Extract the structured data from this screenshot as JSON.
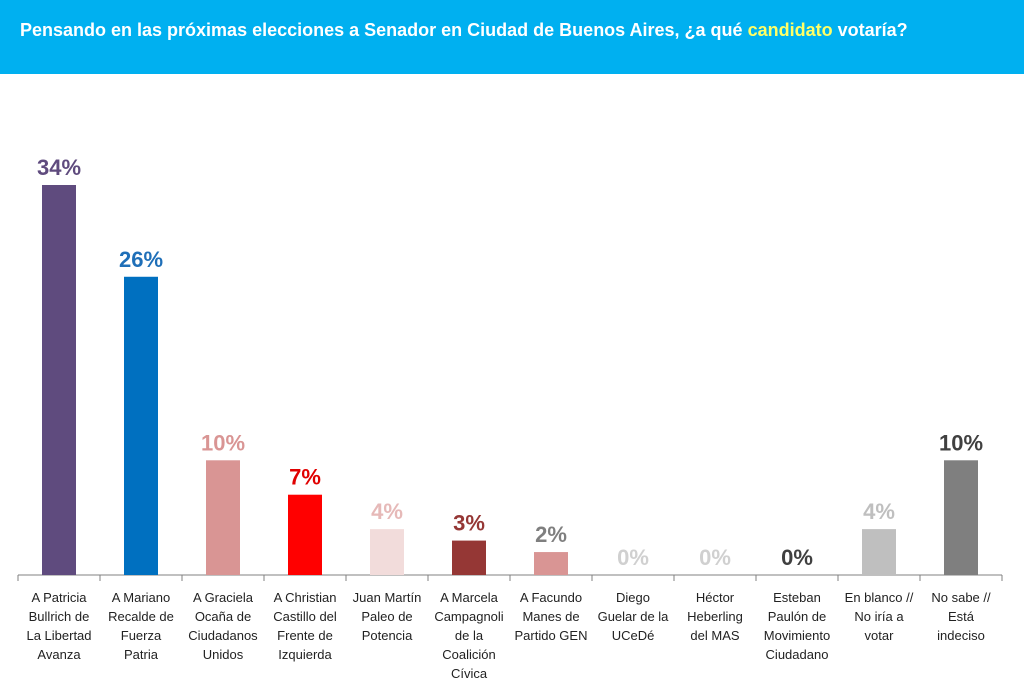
{
  "header": {
    "title_before": "Pensando en las próximas elecciones a Senador en Ciudad de Buenos Aires, ¿a qué ",
    "title_highlight": "candidato",
    "title_after": " votaría?",
    "background_color": "#00b0f0",
    "highlight_color": "#ffff66"
  },
  "chart_data": {
    "type": "bar",
    "title": "Pensando en las próximas elecciones a Senador en Ciudad de Buenos Aires, ¿a qué candidato votaría?",
    "xlabel": "",
    "ylabel": "",
    "ylim": [
      0,
      34
    ],
    "grid": false,
    "categories": [
      [
        "A Patricia",
        "Bullrich de",
        "La Libertad",
        "Avanza"
      ],
      [
        "A Mariano",
        "Recalde de",
        "Fuerza",
        "Patria"
      ],
      [
        "A Graciela",
        "Ocaña de",
        "Ciudadanos",
        "Unidos"
      ],
      [
        "A Christian",
        "Castillo del",
        "Frente de",
        "Izquierda"
      ],
      [
        "Juan Martín",
        "Paleo de",
        "Potencia"
      ],
      [
        "A Marcela",
        "Campagnoli",
        "de la",
        "Coalición",
        "Cívica"
      ],
      [
        "A Facundo",
        "Manes de",
        "Partido GEN"
      ],
      [
        "Diego",
        "Guelar de la",
        "UCeDé"
      ],
      [
        "Héctor",
        "Heberling",
        "del MAS"
      ],
      [
        "Esteban",
        "Paulón de",
        "Movimiento",
        "Ciudadano"
      ],
      [
        "En blanco //",
        "No iría a",
        "votar"
      ],
      [
        "No sabe //",
        "Está",
        "indeciso"
      ]
    ],
    "values": [
      34,
      26,
      10,
      7,
      4,
      3,
      2,
      0,
      0,
      0,
      4,
      10
    ],
    "value_labels": [
      "34%",
      "26%",
      "10%",
      "7%",
      "4%",
      "3%",
      "2%",
      "0%",
      "0%",
      "0%",
      "4%",
      "10%"
    ],
    "bar_colors": [
      "#5f4b7e",
      "#0070c0",
      "#d99594",
      "#ff0000",
      "#f2dcdb",
      "#953735",
      "#d99594",
      "#ffffff",
      "#ffffff",
      "#ffffff",
      "#bfbfbf",
      "#7f7f7f"
    ],
    "label_colors": [
      "#5f4b7e",
      "#1f6fb8",
      "#d99594",
      "#e00000",
      "#e6b9b8",
      "#953735",
      "#7f7f7f",
      "#d0d0d0",
      "#d0d0d0",
      "#404040",
      "#bfbfbf",
      "#404040"
    ]
  }
}
